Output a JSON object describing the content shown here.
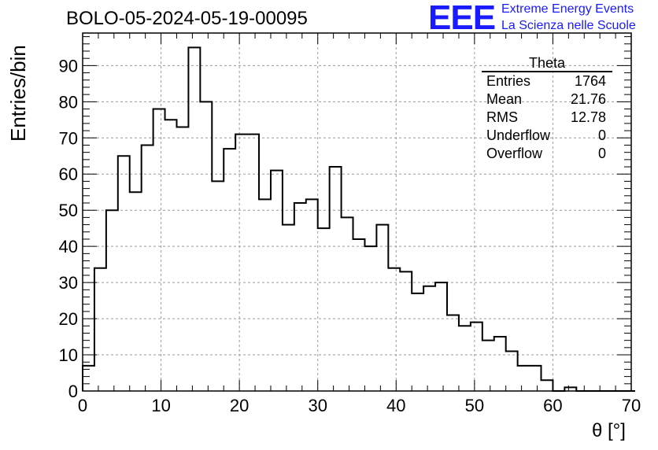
{
  "header": {
    "title": "BOLO-05-2024-05-19-00095",
    "logo_text": "EEE",
    "logo_line1": "Extreme Energy Events",
    "logo_line2": "La Scienza nelle Scuole"
  },
  "stats_box": {
    "title": "Theta",
    "rows": [
      {
        "label": "Entries",
        "value": "1764"
      },
      {
        "label": "Mean",
        "value": "21.76"
      },
      {
        "label": "RMS",
        "value": "12.78"
      },
      {
        "label": "Underflow",
        "value": "0"
      },
      {
        "label": "Overflow",
        "value": "0"
      }
    ]
  },
  "chart_data": {
    "type": "bar",
    "histogram": true,
    "xlabel": "θ [°]",
    "ylabel": "Entries/bin",
    "xlim": [
      0,
      70
    ],
    "ylim": [
      0,
      99
    ],
    "bin_width": 1.5,
    "bin_edges_start": 0,
    "values": [
      7,
      34,
      50,
      65,
      55,
      68,
      78,
      75,
      73,
      95,
      80,
      58,
      67,
      71,
      71,
      53,
      61,
      46,
      52,
      53,
      45,
      62,
      48,
      42,
      40,
      46,
      34,
      33,
      27,
      29,
      30,
      21,
      18,
      19,
      14,
      15,
      11,
      7,
      7,
      3,
      0,
      1,
      0,
      0,
      0,
      0,
      0
    ],
    "xticks": [
      0,
      10,
      20,
      30,
      40,
      50,
      60,
      70
    ],
    "yticks": [
      0,
      10,
      20,
      30,
      40,
      50,
      60,
      70,
      80,
      90
    ],
    "grid": true,
    "line_color": "#000000"
  }
}
